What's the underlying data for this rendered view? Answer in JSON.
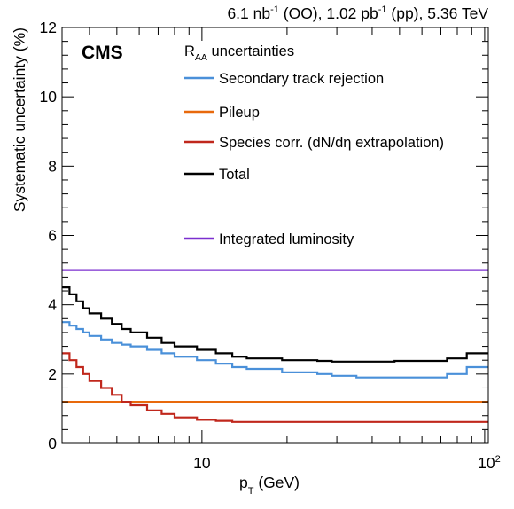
{
  "chart_data": {
    "type": "line",
    "title": "6.1 nb⁻¹ (OO), 1.02 pb⁻¹ (pp), 5.36 TeV",
    "header": {
      "lumi_oo_base": "6.1 nb",
      "lumi_oo_sup": "-1",
      "lumi_oo_tail": " (OO), ",
      "lumi_pp_base": "1.02 pb",
      "lumi_pp_sup": "-1",
      "lumi_pp_tail": " (pp), 5.36 TeV"
    },
    "experiment_label": "CMS",
    "xlabel": "p",
    "xlabel_sub": "T",
    "xlabel_unit": " (GeV)",
    "ylabel": "Systematic uncertainty (%)",
    "x_scale": "log",
    "xlim": [
      3.2,
      103
    ],
    "ylim": [
      0,
      12
    ],
    "y_ticks": [
      {
        "value": 0,
        "label": "0"
      },
      {
        "value": 2,
        "label": "2"
      },
      {
        "value": 4,
        "label": "4"
      },
      {
        "value": 6,
        "label": "6"
      },
      {
        "value": 8,
        "label": "8"
      },
      {
        "value": 10,
        "label": "10"
      },
      {
        "value": 12,
        "label": "12"
      }
    ],
    "x_ticks": [
      {
        "value": 10,
        "label": "10"
      },
      {
        "value": 100,
        "label": "10",
        "sup": "2"
      }
    ],
    "legend": {
      "title_base": "R",
      "title_sub": "AA",
      "title_tail": " uncertainties",
      "placement": "top-right"
    },
    "bin_edges": [
      3.2,
      3.4,
      3.6,
      3.8,
      4.0,
      4.4,
      4.8,
      5.2,
      5.6,
      6.4,
      7.2,
      8.0,
      9.6,
      11.2,
      12.8,
      14.4,
      19.2,
      25.6,
      28.8,
      35.2,
      48.0,
      73.6,
      86.4,
      103.6
    ],
    "series": [
      {
        "name": "Secondary track rejection",
        "color": "#4a90d9",
        "values": [
          3.5,
          3.4,
          3.3,
          3.2,
          3.1,
          3.0,
          2.9,
          2.85,
          2.8,
          2.7,
          2.6,
          2.5,
          2.4,
          2.3,
          2.2,
          2.15,
          2.05,
          2.0,
          1.95,
          1.9,
          1.9,
          2.0,
          2.2
        ]
      },
      {
        "name": "Pileup",
        "color": "#e8690c",
        "values": [
          1.2,
          1.2,
          1.2,
          1.2,
          1.2,
          1.2,
          1.2,
          1.2,
          1.2,
          1.2,
          1.2,
          1.2,
          1.2,
          1.2,
          1.2,
          1.2,
          1.2,
          1.2,
          1.2,
          1.2,
          1.2,
          1.2,
          1.2
        ]
      },
      {
        "name": "Species corr. (dN/dη extrapolation)",
        "color": "#c0271c",
        "values": [
          2.6,
          2.4,
          2.2,
          2.0,
          1.8,
          1.6,
          1.4,
          1.2,
          1.1,
          0.95,
          0.85,
          0.75,
          0.68,
          0.65,
          0.62,
          0.62,
          0.62,
          0.62,
          0.62,
          0.62,
          0.62,
          0.62,
          0.62
        ]
      },
      {
        "name": "Total",
        "color": "#000000",
        "values": [
          4.5,
          4.3,
          4.1,
          3.9,
          3.75,
          3.6,
          3.45,
          3.3,
          3.2,
          3.05,
          2.9,
          2.8,
          2.7,
          2.6,
          2.5,
          2.45,
          2.4,
          2.38,
          2.36,
          2.36,
          2.38,
          2.45,
          2.6
        ]
      },
      {
        "name": "Integrated luminosity",
        "color": "#7b2fcf",
        "values": [
          5.0,
          5.0,
          5.0,
          5.0,
          5.0,
          5.0,
          5.0,
          5.0,
          5.0,
          5.0,
          5.0,
          5.0,
          5.0,
          5.0,
          5.0,
          5.0,
          5.0,
          5.0,
          5.0,
          5.0,
          5.0,
          5.0,
          5.0
        ]
      }
    ]
  }
}
